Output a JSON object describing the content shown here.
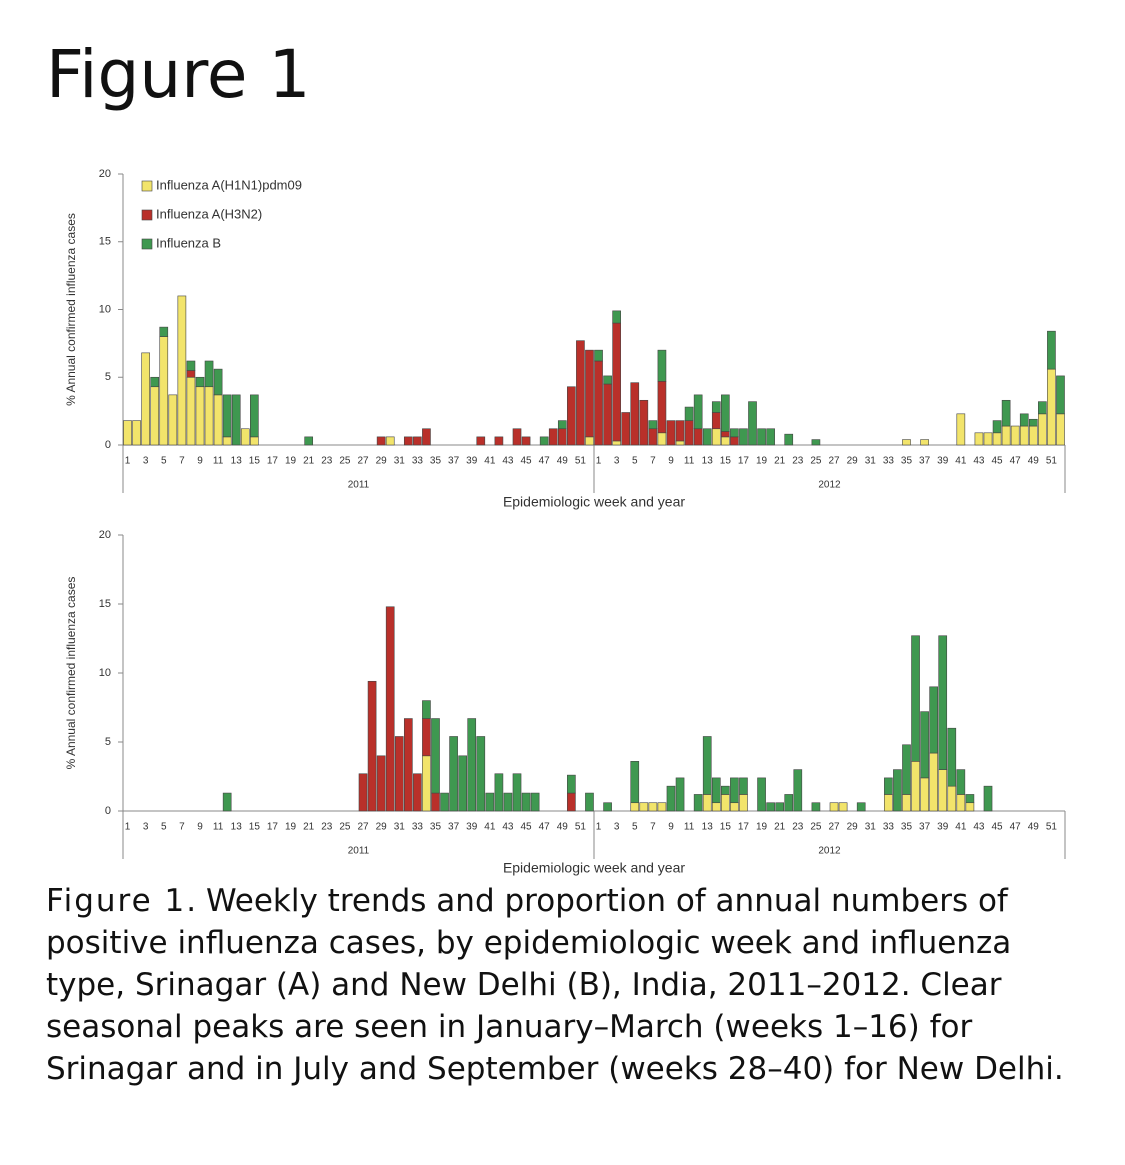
{
  "heading": "Figure 1",
  "caption": {
    "label": "Figure 1",
    "text": ". Weekly trends and proportion of annual numbers of positive influenza cases, by epidemiologic week and influenza type, Srinagar (A) and New Delhi (B), India, 2011–2012. Clear seasonal peaks are seen in January–March (weeks 1–16) for Srinagar and in July and September (weeks 28–40) for New Delhi."
  },
  "chart_data": [
    {
      "type": "stacked_bar",
      "x_label": "Epidemiologic week and year",
      "y_label": "% Annual confirmed influenza cases",
      "x_groups": [
        "2011",
        "2012"
      ],
      "categories": [
        "1",
        null,
        "3",
        null,
        "5",
        null,
        "7",
        null,
        "9",
        null,
        "11",
        null,
        "13",
        null,
        "15",
        null,
        "17",
        null,
        "19",
        null,
        "21",
        null,
        "23",
        null,
        "25",
        null,
        "27",
        null,
        "29",
        null,
        "31",
        null,
        "33",
        null,
        "35",
        null,
        "37",
        null,
        "39",
        null,
        "41",
        null,
        "43",
        null,
        "45",
        null,
        "47",
        null,
        "49",
        null,
        "51",
        null,
        "1",
        null,
        "3",
        null,
        "5",
        null,
        "7",
        null,
        "9",
        null,
        "11",
        null,
        "13",
        null,
        "15",
        null,
        "17",
        null,
        "19",
        null,
        "21",
        null,
        "23",
        null,
        "25",
        null,
        "27",
        null,
        "29",
        null,
        "31",
        null,
        "33",
        null,
        "35",
        null,
        "37",
        null,
        "39",
        null,
        "41",
        null,
        "43",
        null,
        "45",
        null,
        "47",
        null,
        "49",
        null,
        "51",
        null
      ],
      "ylim": [
        0,
        20
      ],
      "yticks": [
        0,
        5,
        10,
        15,
        20
      ],
      "legend": "top-left",
      "series": [
        {
          "name": "Influenza A(H1N1)pdm09",
          "color": "#f2e46b",
          "values": [
            1.8,
            1.8,
            6.8,
            4.3,
            8.0,
            3.7,
            11.0,
            5.0,
            4.3,
            4.3,
            3.7,
            0.6,
            0,
            1.2,
            0.6,
            0,
            0,
            0,
            0,
            0,
            0,
            0,
            0,
            0,
            0,
            0,
            0,
            0,
            0,
            0.6,
            0,
            0,
            0,
            0,
            0,
            0,
            0,
            0,
            0,
            0,
            0,
            0,
            0,
            0,
            0,
            0,
            0,
            0,
            0,
            0,
            0,
            0.6,
            0,
            0,
            0.3,
            0,
            0,
            0,
            0,
            0.9,
            0,
            0.3,
            0,
            0,
            0,
            1.2,
            0.6,
            0,
            0,
            0,
            0,
            0,
            0,
            0,
            0,
            0,
            0,
            0,
            0,
            0,
            0,
            0,
            0,
            0,
            0,
            0,
            0.4,
            0,
            0.4,
            0,
            0,
            0,
            2.3,
            0,
            0.9,
            0.9,
            0.9,
            1.4,
            1.4,
            1.4,
            1.4,
            2.3,
            5.6,
            2.3
          ]
        },
        {
          "name": "Influenza A(H3N2)",
          "color": "#b9302a",
          "values": [
            0,
            0,
            0,
            0,
            0,
            0,
            0,
            0.5,
            0,
            0,
            0,
            0,
            0,
            0,
            0,
            0,
            0,
            0,
            0,
            0,
            0,
            0,
            0,
            0,
            0,
            0,
            0,
            0,
            0.6,
            0,
            0,
            0.6,
            0.6,
            1.2,
            0,
            0,
            0,
            0,
            0,
            0.6,
            0,
            0.6,
            0,
            1.2,
            0.6,
            0,
            0,
            1.2,
            1.2,
            4.3,
            7.7,
            6.4,
            6.2,
            4.5,
            8.7,
            2.4,
            4.6,
            3.3,
            1.2,
            3.8,
            1.8,
            1.5,
            1.8,
            1.2,
            0,
            1.2,
            0.4,
            0.6,
            0,
            0,
            0,
            0,
            0,
            0,
            0,
            0,
            0,
            0,
            0,
            0,
            0,
            0,
            0,
            0,
            0,
            0,
            0,
            0,
            0,
            0,
            0,
            0,
            0,
            0,
            0,
            0,
            0,
            0,
            0,
            0,
            0,
            0,
            0,
            0
          ]
        },
        {
          "name": "Influenza B",
          "color": "#3f9850",
          "values": [
            0,
            0,
            0,
            0.7,
            0.7,
            0,
            0,
            0.7,
            0.7,
            1.9,
            1.9,
            3.1,
            3.7,
            0,
            3.1,
            0,
            0,
            0,
            0,
            0,
            0.6,
            0,
            0,
            0,
            0,
            0,
            0,
            0,
            0,
            0,
            0,
            0,
            0,
            0,
            0,
            0,
            0,
            0,
            0,
            0,
            0,
            0,
            0,
            0,
            0,
            0,
            0.6,
            0,
            0.6,
            0,
            0,
            0,
            0.8,
            0.6,
            0.9,
            0,
            0,
            0,
            0.6,
            2.3,
            0,
            0,
            1.0,
            2.5,
            1.2,
            0.8,
            2.7,
            0.6,
            1.2,
            3.2,
            1.2,
            1.2,
            0,
            0.8,
            0,
            0,
            0.4,
            0,
            0,
            0,
            0,
            0,
            0,
            0,
            0,
            0,
            0,
            0,
            0,
            0,
            0,
            0,
            0,
            0,
            0,
            0,
            0.9,
            1.9,
            0,
            0.9,
            0.5,
            0.9,
            2.8,
            2.8
          ]
        }
      ]
    },
    {
      "type": "stacked_bar",
      "x_label": "Epidemiologic week and year",
      "y_label": "% Annual confirmed influenza cases",
      "x_groups": [
        "2011",
        "2012"
      ],
      "categories": [
        "1",
        null,
        "3",
        null,
        "5",
        null,
        "7",
        null,
        "9",
        null,
        "11",
        null,
        "13",
        null,
        "15",
        null,
        "17",
        null,
        "19",
        null,
        "21",
        null,
        "23",
        null,
        "25",
        null,
        "27",
        null,
        "29",
        null,
        "31",
        null,
        "33",
        null,
        "35",
        null,
        "37",
        null,
        "39",
        null,
        "41",
        null,
        "43",
        null,
        "45",
        null,
        "47",
        null,
        "49",
        null,
        "51",
        null,
        "1",
        null,
        "3",
        null,
        "5",
        null,
        "7",
        null,
        "9",
        null,
        "11",
        null,
        "13",
        null,
        "15",
        null,
        "17",
        null,
        "19",
        null,
        "21",
        null,
        "23",
        null,
        "25",
        null,
        "27",
        null,
        "29",
        null,
        "31",
        null,
        "33",
        null,
        "35",
        null,
        "37",
        null,
        "39",
        null,
        "41",
        null,
        "43",
        null,
        "45",
        null,
        "47",
        null,
        "49",
        null,
        "51",
        null
      ],
      "ylim": [
        0,
        20
      ],
      "yticks": [
        0,
        5,
        10,
        15,
        20
      ],
      "series": [
        {
          "color": "#f2e46b",
          "values": [
            0,
            0,
            0,
            0,
            0,
            0,
            0,
            0,
            0,
            0,
            0,
            0,
            0,
            0,
            0,
            0,
            0,
            0,
            0,
            0,
            0,
            0,
            0,
            0,
            0,
            0,
            0,
            0,
            0,
            0,
            0,
            0,
            0,
            4.0,
            0,
            0,
            0,
            0,
            0,
            0,
            0,
            0,
            0,
            0,
            0,
            0,
            0,
            0,
            0,
            0,
            0,
            0,
            0,
            0,
            0,
            0,
            0.6,
            0.6,
            0.6,
            0.6,
            0,
            0,
            0,
            0,
            1.2,
            0.6,
            1.2,
            0.6,
            1.2,
            0,
            0,
            0,
            0,
            0,
            0,
            0,
            0,
            0,
            0.6,
            0.6,
            0,
            0,
            0,
            0,
            1.2,
            0,
            1.2,
            3.6,
            2.4,
            4.2,
            3.0,
            1.8,
            1.2,
            0.6,
            0,
            0,
            0,
            0,
            0,
            0,
            0,
            0,
            0,
            0
          ]
        },
        {
          "color": "#b9302a",
          "values": [
            0,
            0,
            0,
            0,
            0,
            0,
            0,
            0,
            0,
            0,
            0,
            0,
            0,
            0,
            0,
            0,
            0,
            0,
            0,
            0,
            0,
            0,
            0,
            0,
            0,
            0,
            2.7,
            9.4,
            4.0,
            14.8,
            5.4,
            6.7,
            2.7,
            2.7,
            1.3,
            0,
            0,
            0,
            0,
            0,
            0,
            0,
            0,
            0,
            0,
            0,
            0,
            0,
            0,
            1.3,
            0,
            0,
            0,
            0,
            0,
            0,
            0,
            0,
            0,
            0,
            0,
            0,
            0,
            0,
            0,
            0,
            0,
            0,
            0,
            0,
            0,
            0,
            0,
            0,
            0,
            0,
            0,
            0,
            0,
            0,
            0,
            0,
            0,
            0,
            0,
            0,
            0,
            0,
            0,
            0,
            0,
            0,
            0,
            0,
            0,
            0,
            0,
            0,
            0,
            0,
            0,
            0,
            0,
            0
          ]
        },
        {
          "color": "#3f9850",
          "values": [
            0,
            0,
            0,
            0,
            0,
            0,
            0,
            0,
            0,
            0,
            0,
            1.3,
            0,
            0,
            0,
            0,
            0,
            0,
            0,
            0,
            0,
            0,
            0,
            0,
            0,
            0,
            0,
            0,
            0,
            0,
            0,
            0,
            0,
            1.3,
            5.4,
            1.3,
            5.4,
            4.0,
            6.7,
            5.4,
            1.3,
            2.7,
            1.3,
            2.7,
            1.3,
            1.3,
            0,
            0,
            0,
            1.3,
            0,
            1.3,
            0,
            0.6,
            0,
            0,
            3.0,
            0,
            0,
            0,
            1.8,
            2.4,
            0,
            1.2,
            4.2,
            1.8,
            0.6,
            1.8,
            1.2,
            0,
            2.4,
            0.6,
            0.6,
            1.2,
            3.0,
            0,
            0.6,
            0,
            0,
            0,
            0,
            0.6,
            0,
            0,
            1.2,
            3.0,
            3.6,
            9.1,
            4.8,
            4.8,
            9.7,
            4.2,
            1.8,
            0.6,
            0,
            1.8,
            0,
            0,
            0,
            0,
            0,
            0,
            0,
            0
          ]
        }
      ]
    }
  ]
}
